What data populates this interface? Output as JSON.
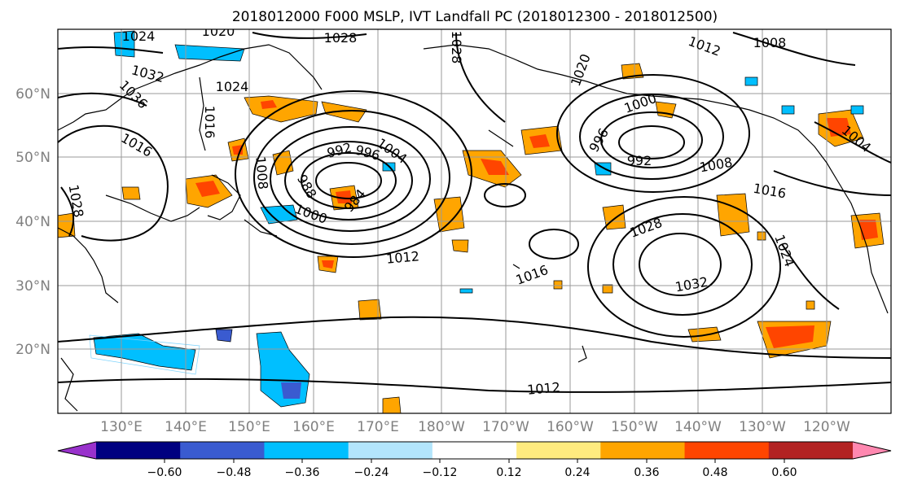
{
  "title": "2018012000 F000 MSLP, IVT Landfall PC (2018012300 - 2018012500)",
  "map": {
    "lat_labels": [
      "60°N",
      "50°N",
      "40°N",
      "30°N",
      "20°N"
    ],
    "lon_labels": [
      "130°E",
      "140°E",
      "150°E",
      "160°E",
      "170°E",
      "180°W",
      "170°W",
      "160°W",
      "150°W",
      "140°W",
      "130°W",
      "120°W"
    ],
    "contour_labels": [
      "1024",
      "1020",
      "1028",
      "1028",
      "1012",
      "1008",
      "1032",
      "1036",
      "1024",
      "1016",
      "1020",
      "1000",
      "996",
      "992",
      "1008",
      "1016",
      "1004",
      "1016",
      "992",
      "996",
      "1004",
      "1008",
      "988",
      "984",
      "1000",
      "1028",
      "1028",
      "1024",
      "1012",
      "1016",
      "1032",
      "1012"
    ]
  },
  "colorbar": {
    "colors": [
      "#9932cc",
      "#000080",
      "#3a5bd0",
      "#00bfff",
      "#b3e5fc",
      "#ffffff",
      "#ffeb7f",
      "#ffa500",
      "#ff4500",
      "#b22222",
      "#ff88b0"
    ],
    "tick_labels": [
      "−0.60",
      "−0.48",
      "−0.36",
      "−0.24",
      "−0.12",
      "0.12",
      "0.24",
      "0.36",
      "0.48",
      "0.60"
    ]
  }
}
